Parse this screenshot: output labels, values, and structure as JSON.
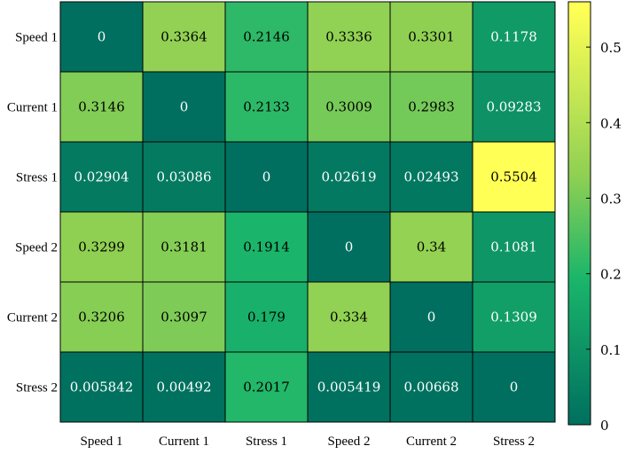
{
  "chart_data": {
    "type": "heatmap",
    "rows": [
      "Speed 1",
      "Current 1",
      "Stress 1",
      "Speed 2",
      "Current 2",
      "Stress 2"
    ],
    "columns": [
      "Speed 1",
      "Current 1",
      "Stress 1",
      "Speed 2",
      "Current 2",
      "Stress 2"
    ],
    "values": [
      [
        0,
        0.3364,
        0.2146,
        0.3336,
        0.3301,
        0.1178
      ],
      [
        0.3146,
        0,
        0.2133,
        0.3009,
        0.2983,
        0.09283
      ],
      [
        0.02904,
        0.03086,
        0,
        0.02619,
        0.02493,
        0.5504
      ],
      [
        0.3299,
        0.3181,
        0.1914,
        0,
        0.34,
        0.1081
      ],
      [
        0.3206,
        0.3097,
        0.179,
        0.334,
        0,
        0.1309
      ],
      [
        0.005842,
        0.00492,
        0.2017,
        0.005419,
        0.00668,
        0
      ]
    ],
    "labels": [
      [
        "0",
        "0.3364",
        "0.2146",
        "0.3336",
        "0.3301",
        "0.1178"
      ],
      [
        "0.3146",
        "0",
        "0.2133",
        "0.3009",
        "0.2983",
        "0.09283"
      ],
      [
        "0.02904",
        "0.03086",
        "0",
        "0.02619",
        "0.02493",
        "0.5504"
      ],
      [
        "0.3299",
        "0.3181",
        "0.1914",
        "0",
        "0.34",
        "0.1081"
      ],
      [
        "0.3206",
        "0.3097",
        "0.179",
        "0.334",
        "0",
        "0.1309"
      ],
      [
        "0.005842",
        "0.00492",
        "0.2017",
        "0.005419",
        "0.00668",
        "0"
      ]
    ],
    "colorbar": {
      "min": 0,
      "max": 0.5504,
      "ticks": [
        0,
        0.1,
        0.2,
        0.3,
        0.4,
        0.5
      ],
      "tick_labels": [
        "0",
        "0.1",
        "0.2",
        "0.3",
        "0.4",
        "0.5"
      ],
      "colormap": "summer",
      "colors": [
        "#006f5f",
        "#1ab56b",
        "#8fd053",
        "#ffff55"
      ]
    },
    "title": "",
    "xlabel": "",
    "ylabel": ""
  }
}
